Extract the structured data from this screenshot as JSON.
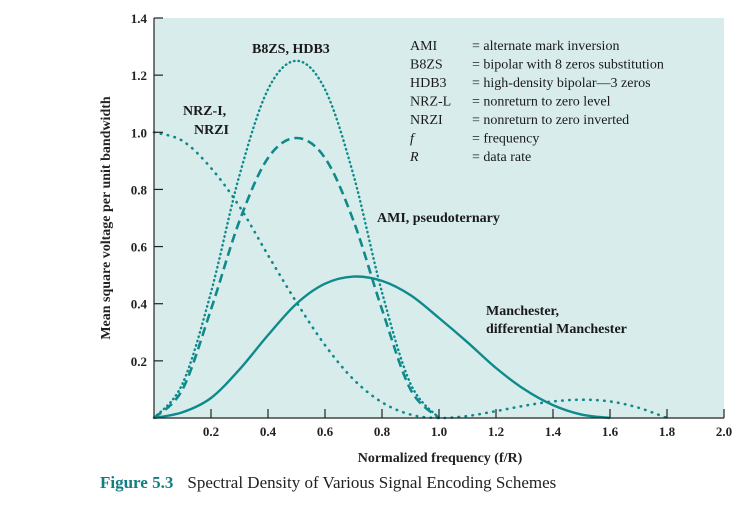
{
  "chart_data": {
    "type": "line",
    "title": "",
    "xlabel": "Normalized frequency (f/R)",
    "ylabel": "Mean square voltage per unit bandwidth",
    "xlim": [
      0,
      2.0
    ],
    "ylim": [
      0,
      1.4
    ],
    "x_ticks": [
      "0.2",
      "0.4",
      "0.6",
      "0.8",
      "1.0",
      "1.2",
      "1.4",
      "1.6",
      "1.8",
      "2.0"
    ],
    "y_ticks": [
      "0.2",
      "0.4",
      "0.6",
      "0.8",
      "1.0",
      "1.2",
      "1.4"
    ],
    "grid": false,
    "background": "#d9ecec",
    "line_color": "#0f8a8a",
    "series": [
      {
        "name": "NRZ-I, NRZI",
        "style": "dotted",
        "x": [
          0.0,
          0.1,
          0.2,
          0.3,
          0.4,
          0.5,
          0.6,
          0.7,
          0.8,
          0.9,
          1.0,
          1.1,
          1.2,
          1.3,
          1.4,
          1.5,
          1.6,
          1.7,
          1.8
        ],
        "y": [
          1.0,
          0.97,
          0.875,
          0.74,
          0.57,
          0.405,
          0.255,
          0.135,
          0.055,
          0.012,
          0.0,
          0.007,
          0.024,
          0.043,
          0.058,
          0.064,
          0.058,
          0.036,
          0.0
        ]
      },
      {
        "name": "B8ZS, HDB3",
        "style": "dotted-dense",
        "x": [
          0.0,
          0.1,
          0.2,
          0.3,
          0.4,
          0.5,
          0.6,
          0.7,
          0.8,
          0.9,
          1.0
        ],
        "y": [
          0.0,
          0.12,
          0.44,
          0.85,
          1.15,
          1.25,
          1.15,
          0.85,
          0.44,
          0.12,
          0.0
        ]
      },
      {
        "name": "AMI, pseudoternary",
        "style": "dashed",
        "x": [
          0.0,
          0.1,
          0.2,
          0.3,
          0.4,
          0.5,
          0.6,
          0.7,
          0.8,
          0.9,
          1.0
        ],
        "y": [
          0.0,
          0.1,
          0.38,
          0.69,
          0.91,
          0.98,
          0.91,
          0.69,
          0.38,
          0.1,
          0.0
        ]
      },
      {
        "name": "Manchester, differential Manchester",
        "style": "solid",
        "x": [
          0.0,
          0.1,
          0.2,
          0.3,
          0.4,
          0.5,
          0.6,
          0.7,
          0.8,
          0.9,
          1.0,
          1.1,
          1.2,
          1.3,
          1.4,
          1.5,
          1.6
        ],
        "y": [
          0.0,
          0.02,
          0.07,
          0.17,
          0.29,
          0.4,
          0.47,
          0.495,
          0.48,
          0.43,
          0.35,
          0.265,
          0.175,
          0.1,
          0.045,
          0.012,
          0.0
        ]
      }
    ],
    "annotations": {
      "b8zs": "B8ZS, HDB3",
      "nrz_line1": "NRZ-I,",
      "nrz_line2": "NRZI",
      "ami": "AMI, pseudoternary",
      "manchester_line1": "Manchester,",
      "manchester_line2": "differential Manchester"
    },
    "legend": [
      {
        "abbr": "AMI",
        "desc": "= alternate mark inversion"
      },
      {
        "abbr": "B8ZS",
        "desc": "= bipolar with 8 zeros substitution"
      },
      {
        "abbr": "HDB3",
        "desc": "= high-density bipolar—3 zeros"
      },
      {
        "abbr": "NRZ-L",
        "desc": "= nonreturn to zero level"
      },
      {
        "abbr": "NRZI",
        "desc": "= nonreturn to zero inverted"
      },
      {
        "abbr": "f",
        "desc": "= frequency",
        "italic": true
      },
      {
        "abbr": "R",
        "desc": "= data rate",
        "italic": true
      }
    ]
  },
  "caption": {
    "number": "Figure 5.3",
    "text": "Spectral Density of Various Signal Encoding Schemes"
  }
}
